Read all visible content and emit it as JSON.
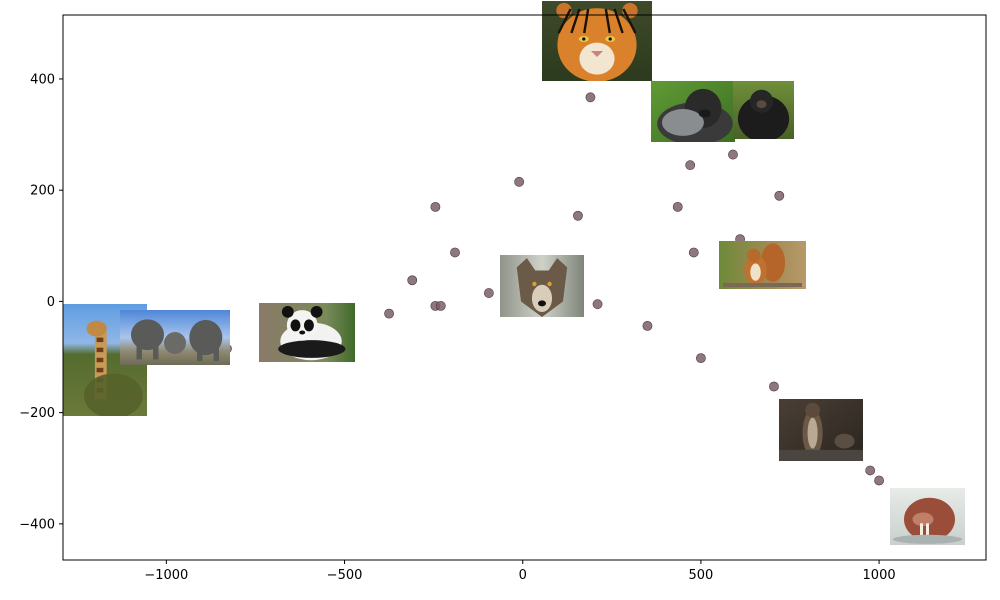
{
  "chart_data": {
    "type": "scatter",
    "title": "",
    "xlabel": "",
    "ylabel": "",
    "xlim": [
      -1290,
      1300
    ],
    "ylim": [
      -465,
      515
    ],
    "x_ticks": [
      {
        "value": -1000,
        "label": "−1000"
      },
      {
        "value": -500,
        "label": "−500"
      },
      {
        "value": 0,
        "label": "0"
      },
      {
        "value": 500,
        "label": "500"
      },
      {
        "value": 1000,
        "label": "1000"
      }
    ],
    "y_ticks": [
      {
        "value": 400,
        "label": "400"
      },
      {
        "value": 200,
        "label": "200"
      },
      {
        "value": 0,
        "label": "0"
      },
      {
        "value": -200,
        "label": "−200"
      },
      {
        "value": -400,
        "label": "−400"
      }
    ],
    "grid": false,
    "marker_color": "#7a5f69",
    "points": [
      {
        "x": 190,
        "y": 367
      },
      {
        "x": 470,
        "y": 245
      },
      {
        "x": 590,
        "y": 264
      },
      {
        "x": -10,
        "y": 215
      },
      {
        "x": 720,
        "y": 190
      },
      {
        "x": -245,
        "y": 170
      },
      {
        "x": 155,
        "y": 154
      },
      {
        "x": 435,
        "y": 170
      },
      {
        "x": 610,
        "y": 112
      },
      {
        "x": -190,
        "y": 88
      },
      {
        "x": 480,
        "y": 88
      },
      {
        "x": -310,
        "y": 38
      },
      {
        "x": -95,
        "y": 15
      },
      {
        "x": -245,
        "y": -8
      },
      {
        "x": -230,
        "y": -8
      },
      {
        "x": 210,
        "y": -5
      },
      {
        "x": -375,
        "y": -22
      },
      {
        "x": 350,
        "y": -44
      },
      {
        "x": -830,
        "y": -85
      },
      {
        "x": 500,
        "y": -102
      },
      {
        "x": 705,
        "y": -153
      },
      {
        "x": 975,
        "y": -304
      },
      {
        "x": 1000,
        "y": -322
      }
    ],
    "image_annotations": [
      {
        "subject": "tiger",
        "x_range": [
          55,
          365
        ],
        "y_range": [
          396,
          540
        ]
      },
      {
        "subject": "gorilla",
        "x_range": [
          360,
          595
        ],
        "y_range": [
          287,
          397
        ]
      },
      {
        "subject": "chimpanzee",
        "x_range": [
          590,
          760
        ],
        "y_range": [
          292,
          397
        ]
      },
      {
        "subject": "wolf",
        "x_range": [
          -65,
          170
        ],
        "y_range": [
          -28,
          83
        ]
      },
      {
        "subject": "squirrel",
        "x_range": [
          550,
          795
        ],
        "y_range": [
          21,
          108
        ]
      },
      {
        "subject": "giraffe",
        "x_range": [
          -1290,
          -1055
        ],
        "y_range": [
          -205,
          -4
        ]
      },
      {
        "subject": "elephant",
        "x_range": [
          -1130,
          -820
        ],
        "y_range": [
          -115,
          -16
        ]
      },
      {
        "subject": "panda",
        "x_range": [
          -740,
          -470
        ],
        "y_range": [
          -108,
          -2
        ]
      },
      {
        "subject": "otter",
        "x_range": [
          720,
          955
        ],
        "y_range": [
          -287,
          -175
        ]
      },
      {
        "subject": "walrus",
        "x_range": [
          1030,
          1240
        ],
        "y_range": [
          -438,
          -335
        ]
      }
    ]
  }
}
